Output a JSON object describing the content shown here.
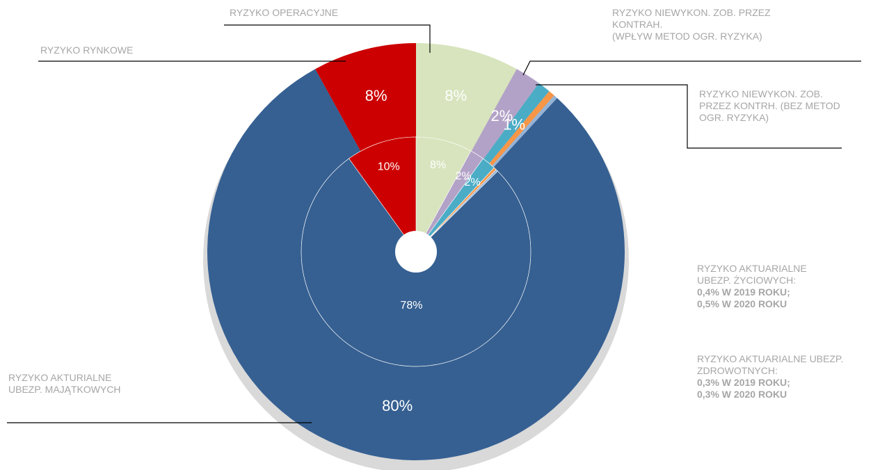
{
  "chart_data": {
    "type": "nested_pie",
    "categories": [
      "RYZYKO OPERACYJNE",
      "RYZYKO NIEWYKON. ZOB. PRZEZ\nKONTRAH.\n(WPŁYW METOD OGR. RYZYKA)",
      "RYZYKO NIEWYKON. ZOB.\nPRZEZ KONTRH. (BEZ METOD\nOGR. RYZYKA)",
      "RYZYKO AKTUARIALNE\nUBEZP. ŻYCIOWYCH:",
      "RYZYKO AKTUARIALNE UBEZP.\nZDROWOTNYCH:",
      "RYZYKO AKTURIALNE\nUBEZP. MAJĄTKOWYCH",
      "RYZYKO RYNKOWE"
    ],
    "colors": [
      "#d7e4bd",
      "#b3a2c7",
      "#4bacc6",
      "#f79646",
      "#95b3d7",
      "#366092",
      "#cc0000"
    ],
    "annotations": [
      "0,4% W 2019 ROKU;",
      "0,5% W 2020 ROKU",
      "0,3% W 2019 ROKU;",
      "0,3% W 2020 ROKU"
    ],
    "series": [
      {
        "values": [
          8,
          2,
          1,
          0.5,
          0.3,
          80,
          8
        ],
        "value_labels": [
          "8%",
          "2%",
          "1%",
          null,
          null,
          "80%",
          "8%"
        ]
      },
      {
        "values": [
          8,
          2,
          2,
          0.4,
          0.3,
          78,
          10
        ],
        "value_labels": [
          "8%",
          "2%",
          "2%",
          null,
          null,
          "78%",
          "10%"
        ]
      }
    ]
  }
}
